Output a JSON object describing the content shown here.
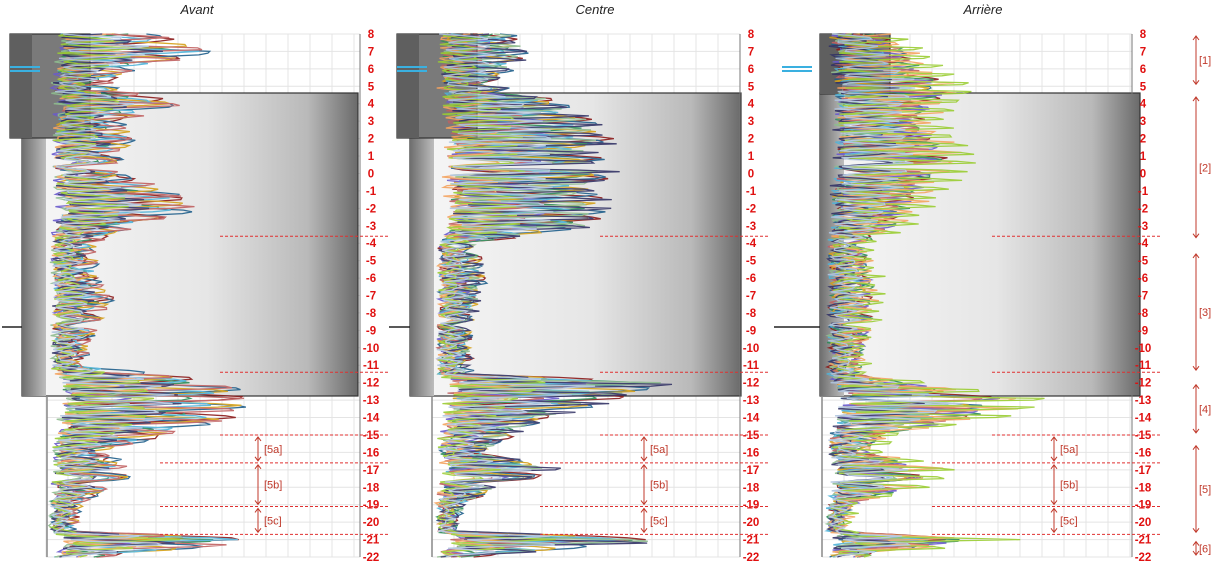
{
  "chart_data": [
    {
      "type": "line",
      "title": "Avant",
      "ylim": [
        -22,
        8
      ],
      "yticks": [
        8,
        7,
        6,
        5,
        4,
        3,
        2,
        1,
        0,
        -1,
        -2,
        -3,
        -4,
        -5,
        -6,
        -7,
        -8,
        -9,
        -10,
        -11,
        -12,
        -13,
        -14,
        -15,
        -16,
        -17,
        -18,
        -19,
        -20,
        -21,
        -22
      ],
      "grid": true,
      "boundaries": [
        -3.6,
        -11.4,
        -15,
        -16.6,
        -19.1,
        -20.7
      ],
      "segments": [
        {
          "label": "[5a]",
          "from": -15,
          "to": -16.6
        },
        {
          "label": "[5b]",
          "from": -16.6,
          "to": -19.1
        },
        {
          "label": "[5c]",
          "from": -19.1,
          "to": -20.7
        }
      ],
      "series_profile": [
        {
          "y": 8,
          "x": 0.3
        },
        {
          "y": 7,
          "x": 0.5
        },
        {
          "y": 6,
          "x": 0.25
        },
        {
          "y": 5,
          "x": 0.15
        },
        {
          "y": 4,
          "x": 0.4
        },
        {
          "y": 3,
          "x": 0.2
        },
        {
          "y": 2,
          "x": 0.25
        },
        {
          "y": 1,
          "x": 0.2
        },
        {
          "y": 0,
          "x": 0.2
        },
        {
          "y": -1,
          "x": 0.35
        },
        {
          "y": -2,
          "x": 0.45
        },
        {
          "y": -3,
          "x": 0.25
        },
        {
          "y": -4,
          "x": 0.12
        },
        {
          "y": -6,
          "x": 0.12
        },
        {
          "y": -7,
          "x": 0.18
        },
        {
          "y": -9,
          "x": 0.12
        },
        {
          "y": -11,
          "x": 0.08
        },
        {
          "y": -12,
          "x": 0.55
        },
        {
          "y": -13,
          "x": 0.6
        },
        {
          "y": -14,
          "x": 0.55
        },
        {
          "y": -15,
          "x": 0.35
        },
        {
          "y": -16,
          "x": 0.15
        },
        {
          "y": -17,
          "x": 0.25
        },
        {
          "y": -18,
          "x": 0.18
        },
        {
          "y": -19,
          "x": 0.08
        },
        {
          "y": -20.5,
          "x": 0.05
        },
        {
          "y": -21,
          "x": 0.7
        },
        {
          "y": -22,
          "x": 0.15
        }
      ]
    },
    {
      "type": "line",
      "title": "Centre",
      "ylim": [
        -22,
        8
      ],
      "yticks": [
        8,
        7,
        6,
        5,
        4,
        3,
        2,
        1,
        0,
        -1,
        -2,
        -3,
        -4,
        -5,
        -6,
        -7,
        -8,
        -9,
        -10,
        -11,
        -12,
        -13,
        -14,
        -15,
        -16,
        -17,
        -18,
        -19,
        -20,
        -21,
        -22
      ],
      "grid": true,
      "boundaries": [
        -3.6,
        -11.4,
        -15,
        -16.6,
        -19.1,
        -20.7
      ],
      "segments": [
        {
          "label": "[5a]",
          "from": -15,
          "to": -16.6
        },
        {
          "label": "[5b]",
          "from": -16.6,
          "to": -19.1
        },
        {
          "label": "[5c]",
          "from": -19.1,
          "to": -20.7
        }
      ],
      "series_profile": [
        {
          "y": 8,
          "x": 0.25
        },
        {
          "y": 7,
          "x": 0.3
        },
        {
          "y": 6,
          "x": 0.25
        },
        {
          "y": 5,
          "x": 0.2
        },
        {
          "y": 4,
          "x": 0.45
        },
        {
          "y": 3,
          "x": 0.55
        },
        {
          "y": 2,
          "x": 0.6
        },
        {
          "y": 1,
          "x": 0.55
        },
        {
          "y": 0,
          "x": 0.6
        },
        {
          "y": -1,
          "x": 0.55
        },
        {
          "y": -2,
          "x": 0.6
        },
        {
          "y": -3,
          "x": 0.55
        },
        {
          "y": -4,
          "x": 0.12
        },
        {
          "y": -6,
          "x": 0.15
        },
        {
          "y": -8,
          "x": 0.12
        },
        {
          "y": -10,
          "x": 0.1
        },
        {
          "y": -11.5,
          "x": 0.1
        },
        {
          "y": -12,
          "x": 0.85
        },
        {
          "y": -13,
          "x": 0.6
        },
        {
          "y": -14,
          "x": 0.4
        },
        {
          "y": -15,
          "x": 0.25
        },
        {
          "y": -16,
          "x": 0.15
        },
        {
          "y": -17,
          "x": 0.45
        },
        {
          "y": -18,
          "x": 0.2
        },
        {
          "y": -19,
          "x": 0.08
        },
        {
          "y": -20.5,
          "x": 0.05
        },
        {
          "y": -21,
          "x": 0.85
        },
        {
          "y": -22,
          "x": 0.1
        }
      ]
    },
    {
      "type": "line",
      "title": "Arrière",
      "ylim": [
        -22,
        8
      ],
      "yticks": [
        8,
        7,
        6,
        5,
        4,
        3,
        2,
        1,
        0,
        -1,
        -2,
        -3,
        -4,
        -5,
        -6,
        -7,
        -8,
        -9,
        -10,
        -11,
        -12,
        -13,
        -14,
        -15,
        -16,
        -17,
        -18,
        -19,
        -20,
        -21,
        -22
      ],
      "grid": true,
      "boundaries": [
        -3.6,
        -11.4,
        -15,
        -16.6,
        -19.1,
        -20.7
      ],
      "segments": [
        {
          "label": "[5a]",
          "from": -15,
          "to": -16.6
        },
        {
          "label": "[5b]",
          "from": -16.6,
          "to": -19.1
        },
        {
          "label": "[5c]",
          "from": -19.1,
          "to": -20.7
        }
      ],
      "zones": [
        {
          "label": "[1]",
          "from": 8,
          "to": 5
        },
        {
          "label": "[2]",
          "from": 4.5,
          "to": -3.8
        },
        {
          "label": "[3]",
          "from": -4.5,
          "to": -11.4
        },
        {
          "label": "[4]",
          "from": -12,
          "to": -15
        },
        {
          "label": "[5]",
          "from": -15.5,
          "to": -20.7
        },
        {
          "label": "[6]",
          "from": -21,
          "to": -22
        }
      ],
      "series_profile": [
        {
          "y": 8,
          "x": 0.2
        },
        {
          "y": 7,
          "x": 0.3
        },
        {
          "y": 6,
          "x": 0.35
        },
        {
          "y": 5,
          "x": 0.45
        },
        {
          "y": 4,
          "x": 0.4
        },
        {
          "y": 3,
          "x": 0.35
        },
        {
          "y": 2,
          "x": 0.4
        },
        {
          "y": 1,
          "x": 0.45
        },
        {
          "y": 0,
          "x": 0.4
        },
        {
          "y": -1,
          "x": 0.35
        },
        {
          "y": -2,
          "x": 0.3
        },
        {
          "y": -3,
          "x": 0.25
        },
        {
          "y": -4,
          "x": 0.12
        },
        {
          "y": -6,
          "x": 0.15
        },
        {
          "y": -8,
          "x": 0.15
        },
        {
          "y": -10,
          "x": 0.12
        },
        {
          "y": -11.5,
          "x": 0.1
        },
        {
          "y": -12,
          "x": 0.3
        },
        {
          "y": -13,
          "x": 0.7
        },
        {
          "y": -14,
          "x": 0.55
        },
        {
          "y": -15,
          "x": 0.2
        },
        {
          "y": -16,
          "x": 0.15
        },
        {
          "y": -17,
          "x": 0.4
        },
        {
          "y": -18,
          "x": 0.3
        },
        {
          "y": -19,
          "x": 0.08
        },
        {
          "y": -20.5,
          "x": 0.05
        },
        {
          "y": -21,
          "x": 0.55
        },
        {
          "y": -22,
          "x": 0.1
        }
      ]
    }
  ],
  "colors": {
    "tick_labels": "#e01010",
    "boundary_lines": "#e03030",
    "segment_labels": "#c0392b",
    "grid": "#e4e4e4",
    "pipe": "#3ab0e0",
    "series": [
      "#8b1a1a",
      "#1f5f8b",
      "#2e8b57",
      "#d4a017",
      "#6a5acd",
      "#4fb3d9",
      "#c06060",
      "#8fbc8f",
      "#f4a460",
      "#333366",
      "#9acd32",
      "#b0c4de"
    ]
  }
}
